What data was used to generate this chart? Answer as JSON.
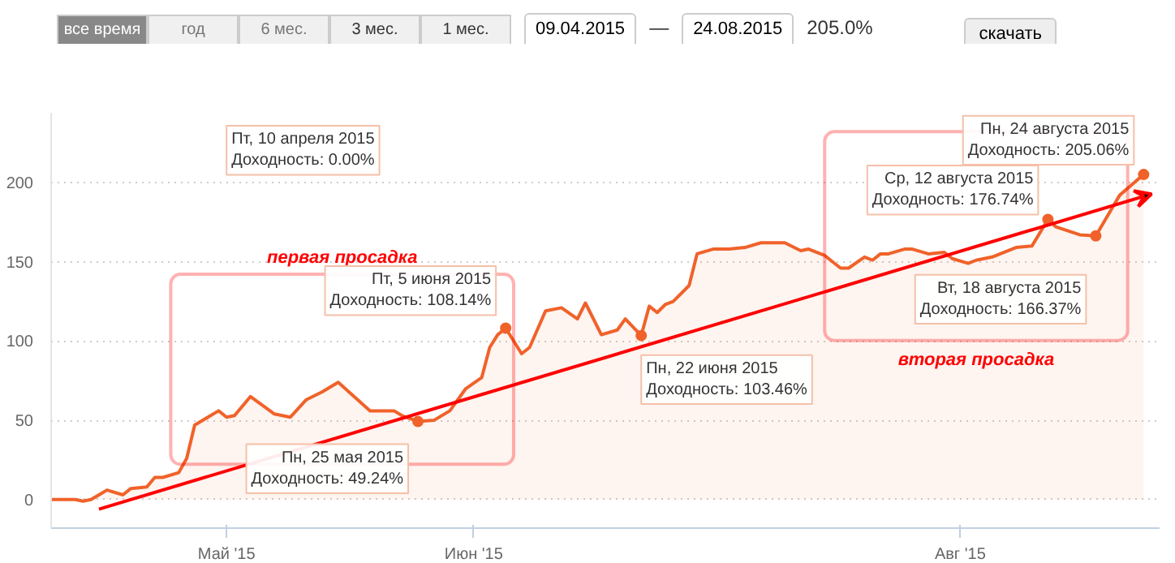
{
  "chart_data": {
    "type": "area",
    "color": "#f0622a",
    "x": [
      "2015-04-09",
      "2015-04-12",
      "2015-04-13",
      "2015-04-14",
      "2015-04-15",
      "2015-04-16",
      "2015-04-18",
      "2015-04-19",
      "2015-04-21",
      "2015-04-22",
      "2015-04-23",
      "2015-04-25",
      "2015-04-26",
      "2015-04-27",
      "2015-04-29",
      "2015-04-30",
      "2015-05-01",
      "2015-05-02",
      "2015-05-04",
      "2015-05-07",
      "2015-05-09",
      "2015-05-11",
      "2015-05-13",
      "2015-05-15",
      "2015-05-19",
      "2015-05-22",
      "2015-05-23",
      "2015-05-25",
      "2015-05-27",
      "2015-05-29",
      "2015-05-31",
      "2015-06-02",
      "2015-06-03",
      "2015-06-04",
      "2015-06-05",
      "2015-06-07",
      "2015-06-08",
      "2015-06-10",
      "2015-06-12",
      "2015-06-14",
      "2015-06-15",
      "2015-06-17",
      "2015-06-19",
      "2015-06-20",
      "2015-06-22",
      "2015-06-23",
      "2015-06-24",
      "2015-06-25",
      "2015-06-26",
      "2015-06-28",
      "2015-06-29",
      "2015-07-01",
      "2015-07-03",
      "2015-07-05",
      "2015-07-07",
      "2015-07-10",
      "2015-07-12",
      "2015-07-13",
      "2015-07-15",
      "2015-07-16",
      "2015-07-17",
      "2015-07-18",
      "2015-07-20",
      "2015-07-21",
      "2015-07-22",
      "2015-07-23",
      "2015-07-25",
      "2015-07-26",
      "2015-07-28",
      "2015-07-30",
      "2015-07-31",
      "2015-08-02",
      "2015-08-03",
      "2015-08-05",
      "2015-08-08",
      "2015-08-10",
      "2015-08-12",
      "2015-08-13",
      "2015-08-16",
      "2015-08-18",
      "2015-08-21",
      "2015-08-24"
    ],
    "values": [
      0,
      0,
      -1,
      0,
      3,
      6,
      3,
      7,
      8,
      14,
      14,
      17,
      26,
      47,
      53,
      56,
      52,
      53,
      65,
      54,
      52,
      63,
      68,
      74,
      56,
      56,
      53,
      49.24,
      50,
      56,
      70,
      77,
      96,
      104,
      108.14,
      92,
      96,
      119,
      121,
      114,
      124,
      104,
      107,
      114,
      103.46,
      122,
      118,
      123,
      125,
      135,
      155,
      158,
      158,
      159,
      162,
      162,
      157,
      158,
      154,
      150,
      146,
      146,
      153,
      151,
      155,
      155,
      158,
      158,
      155,
      156,
      152,
      149,
      151,
      153,
      159,
      160,
      176.74,
      172,
      167,
      166.37,
      192,
      205.06
    ],
    "ylim": [
      -18,
      244
    ],
    "yticks": [
      0,
      50,
      100,
      150,
      200
    ],
    "xlim": [
      "2015-04-09",
      "2015-08-26"
    ],
    "xticks": [
      {
        "value": "2015-05-01",
        "label": "Май '15"
      },
      {
        "value": "2015-06-01",
        "label": "Июн '15"
      },
      {
        "value": "2015-08-01",
        "label": "Авг '15"
      }
    ],
    "grid": "y",
    "annotations": [
      "все время",
      "год",
      "6 мес.",
      "3 мес.",
      "1 мес.",
      "09.04.2015",
      "—",
      "24.08.2015",
      "205.0%",
      "скачать",
      "Пт, 10 апреля 2015\nДоходность: 0.00%",
      "первая просадка",
      "вторая просадка",
      {
        "text": "Пн, 25 мая 2015\nДоходность: 49.24%",
        "x": "2015-05-25",
        "y": 49.24
      },
      {
        "text": "Пт, 5 июня 2015\nДоходность: 108.14%",
        "x": "2015-06-05",
        "y": 108.14
      },
      {
        "text": "Пн, 22 июня 2015\nДоходность: 103.46%",
        "x": "2015-06-22",
        "y": 103.46
      },
      {
        "text": "Ср, 12 августа 2015\nДоходность: 176.74%",
        "x": "2015-08-12",
        "y": 176.74
      },
      {
        "text": "Вт, 18 августа 2015\nДоходность: 166.37%",
        "x": "2015-08-18",
        "y": 166.37
      },
      {
        "text": "Пн, 24 августа 2015\nДоходность: 205.06%",
        "x": "2015-08-24",
        "y": 205.06
      }
    ]
  }
}
